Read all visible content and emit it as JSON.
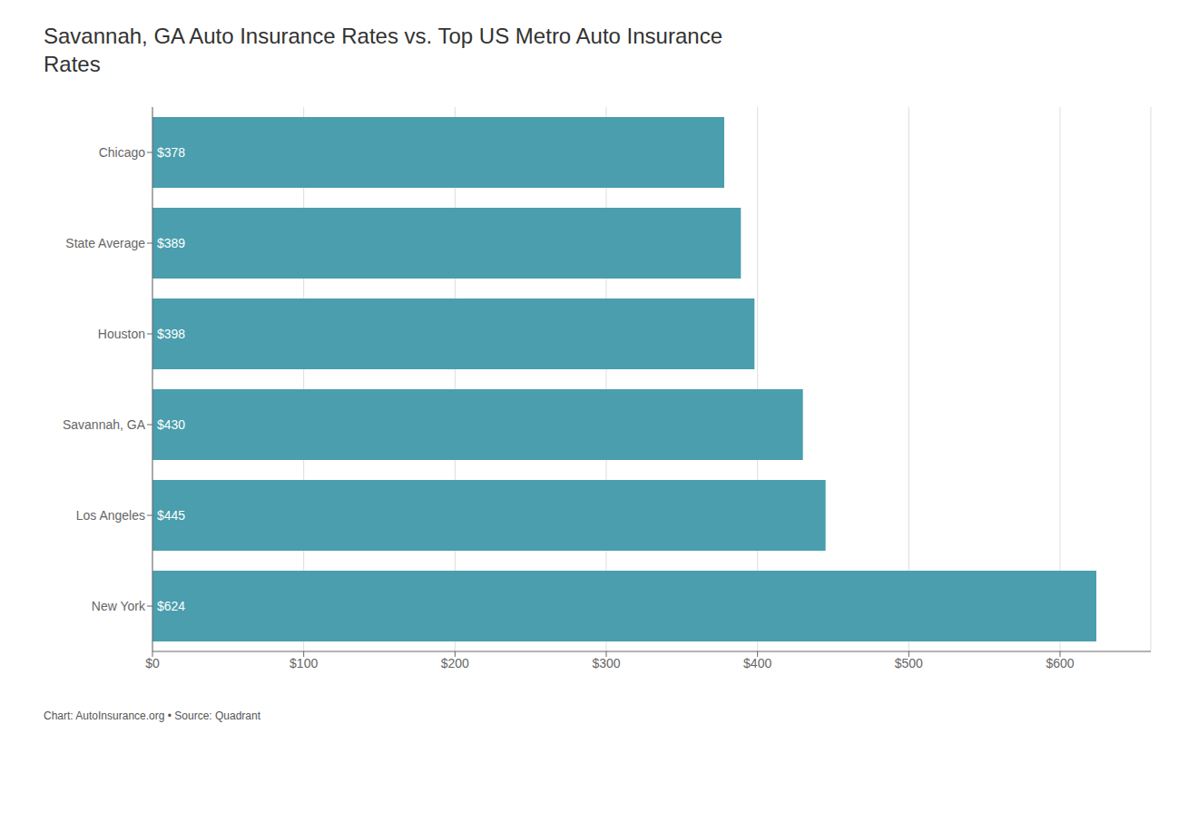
{
  "chart_data": {
    "type": "bar",
    "orientation": "horizontal",
    "title": "Savannah, GA Auto Insurance Rates vs. Top US Metro Auto Insurance\nRates",
    "annotations": [
      "Chart: AutoInsurance.org • Source: Quadrant"
    ],
    "categories": [
      "Chicago",
      "State Average",
      "Houston",
      "Savannah, GA",
      "Los Angeles",
      "New York"
    ],
    "values": [
      378,
      389,
      398,
      430,
      445,
      624
    ],
    "value_labels": [
      "$378",
      "$389",
      "$398",
      "$430",
      "$445",
      "$624"
    ],
    "data_labels": true,
    "color": "#4a9eae",
    "xlim": [
      0,
      660
    ],
    "xticks": [
      {
        "value": 0,
        "label": "$0"
      },
      {
        "value": 100,
        "label": "$100"
      },
      {
        "value": 200,
        "label": "$200"
      },
      {
        "value": 300,
        "label": "$300"
      },
      {
        "value": 400,
        "label": "$400"
      },
      {
        "value": 500,
        "label": "$500"
      },
      {
        "value": 600,
        "label": "$600"
      }
    ],
    "grid": true
  }
}
